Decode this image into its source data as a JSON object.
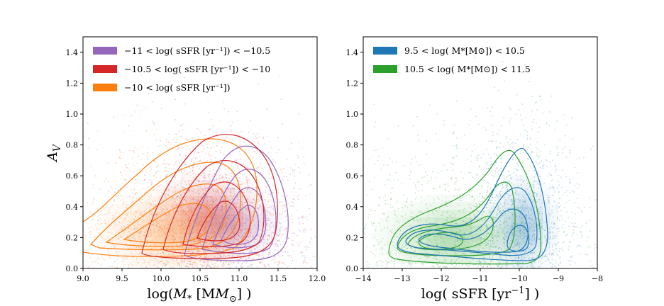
{
  "chart_data": [
    {
      "type": "density-contour",
      "panel": "left",
      "ylabel": "A_V",
      "xlabel_parts": {
        "pre": "log(",
        "sym": "M",
        "sub": "*",
        "mid": " [M",
        "sun": "⊙",
        "post": "] )"
      },
      "xlim": [
        9.0,
        12.0
      ],
      "ylim": [
        0.0,
        1.5
      ],
      "xticks": [
        "9.0",
        "9.5",
        "10.0",
        "10.5",
        "11.0",
        "11.5",
        "12.0"
      ],
      "yticks": [
        "0.0",
        "0.2",
        "0.4",
        "0.6",
        "0.8",
        "1.0",
        "1.2",
        "1.4"
      ],
      "xtick_values": [
        9.0,
        9.5,
        10.0,
        10.5,
        11.0,
        11.5,
        12.0
      ],
      "ytick_values": [
        0.0,
        0.2,
        0.4,
        0.6,
        0.8,
        1.0,
        1.2,
        1.4
      ],
      "legend_position": "top-left",
      "series": [
        {
          "name": "−11 < log( sSFR [yr⁻¹]) < −10.5",
          "color": "#9467bd",
          "center": [
            10.85,
            0.25
          ],
          "spread": [
            0.3,
            0.1
          ]
        },
        {
          "name": "−10.5 < log( sSFR [yr⁻¹]) < −10",
          "color": "#d62728",
          "center": [
            10.55,
            0.32
          ],
          "spread": [
            0.32,
            0.13
          ]
        },
        {
          "name": "−10 < log( sSFR [yr⁻¹])",
          "color": "#ff7f0e",
          "center": [
            10.1,
            0.22
          ],
          "spread": [
            0.45,
            0.12
          ]
        }
      ]
    },
    {
      "type": "density-contour",
      "panel": "right",
      "ylabel": "",
      "xlabel_parts": {
        "pre": "log( sSFR [yr",
        "sup": "−1",
        "post": "] )"
      },
      "xlim": [
        -14,
        -8
      ],
      "ylim": [
        0.0,
        1.5
      ],
      "xticks": [
        "−14",
        "−13",
        "−12",
        "−11",
        "−10",
        "−9",
        "−8"
      ],
      "yticks": [
        "0.0",
        "0.2",
        "0.4",
        "0.6",
        "0.8",
        "1.0",
        "1.2",
        "1.4"
      ],
      "xtick_values": [
        -14,
        -13,
        -12,
        -11,
        -10,
        -9,
        -8
      ],
      "ytick_values": [
        0.0,
        0.2,
        0.4,
        0.6,
        0.8,
        1.0,
        1.2,
        1.4
      ],
      "legend_position": "top-left",
      "series": [
        {
          "name": "9.5 < log( M*[M⊙]) < 10.5",
          "color": "#1f77b4",
          "center": [
            -10.0,
            0.25
          ],
          "spread": [
            0.4,
            0.15
          ]
        },
        {
          "name": "10.5 < log( M*[M⊙]) < 11.5",
          "color": "#2ca02c",
          "center": [
            -11.8,
            0.18
          ],
          "spread": [
            0.9,
            0.12
          ]
        }
      ]
    }
  ]
}
